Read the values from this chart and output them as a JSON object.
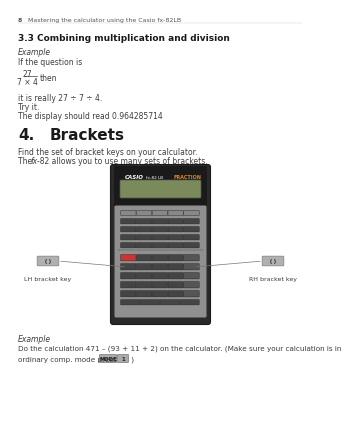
{
  "header_page": "8",
  "header_title": "Mastering the calculator using the Casio fx-82LB",
  "section": "3.3 Combining multiplication and division",
  "example_label": "Example",
  "question_intro": "If the question is",
  "fraction_num": "27",
  "fraction_den": "7 × 4",
  "then_text": "then",
  "really_text": "it is really 27 ÷ 7 ÷ 4.",
  "try_text": "Try it.",
  "display_text": "The display should read 0.964285714",
  "section4_num": "4.",
  "section4_title": "Brackets",
  "find_text": "Find the set of bracket keys on your calculator.",
  "fx82_text1": "The ",
  "fx82_text2": "fx",
  "fx82_text3": "-82 allows you to use many sets of brackets.",
  "lh_label": "LH bracket key",
  "rh_label": "RH bracket key",
  "example2_label": "Example",
  "calc_text1": "Do the calculation 471 – (93 + 11 + 2) on the calculator. (Make sure your calculation is in",
  "calc_text2": "ordinary comp. mode press",
  "mode_btn": "MODE",
  "one_btn": "1",
  "close_paren": " )",
  "bg_color": "#ffffff",
  "text_color": "#3d3d3d",
  "header_color": "#555555",
  "section_bold_color": "#1a1a1a",
  "calc_body_color": "#2a2a2a",
  "calc_top_color": "#1a1a1a",
  "calc_screen_color": "#7a8a5a",
  "calc_keys_bg": "#909090",
  "calc_key_dark": "#444444",
  "calc_key_med": "#666666",
  "bracket_box_bg": "#b0b0b0",
  "bracket_box_edge": "#888888",
  "arrow_color": "#777777",
  "btn_bg": "#aaaaaa",
  "btn_edge": "#777777"
}
